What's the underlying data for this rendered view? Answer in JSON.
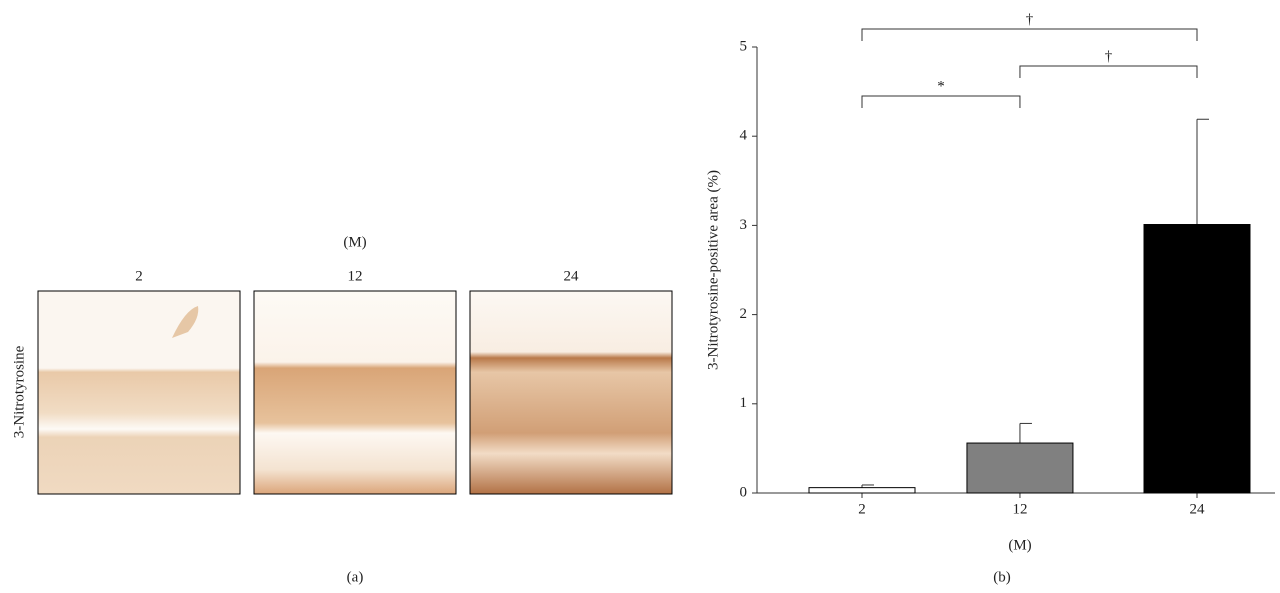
{
  "panel_a": {
    "unit": "(M)",
    "columns": [
      "2",
      "12",
      "24"
    ],
    "row_label": "3-Nitrotyrosine",
    "caption": "(a)"
  },
  "chart_data": {
    "type": "bar",
    "caption": "(b)",
    "y_label": "3-Nitrotyrosine-positive area (%)",
    "x_label": "(M)",
    "categories": [
      "2",
      "12",
      "24"
    ],
    "values": [
      0.06,
      0.56,
      3.01
    ],
    "errors": [
      0.03,
      0.22,
      1.18
    ],
    "colors": [
      "#ffffff",
      "#808080",
      "#000000"
    ],
    "ylim": [
      0,
      5
    ],
    "yticks": [
      0,
      1,
      2,
      3,
      4,
      5
    ],
    "annotations": [
      {
        "label": "*",
        "from": 0,
        "to": 1
      },
      {
        "label": "†",
        "from": 1,
        "to": 2
      },
      {
        "label": "†",
        "from": 0,
        "to": 2
      }
    ]
  }
}
